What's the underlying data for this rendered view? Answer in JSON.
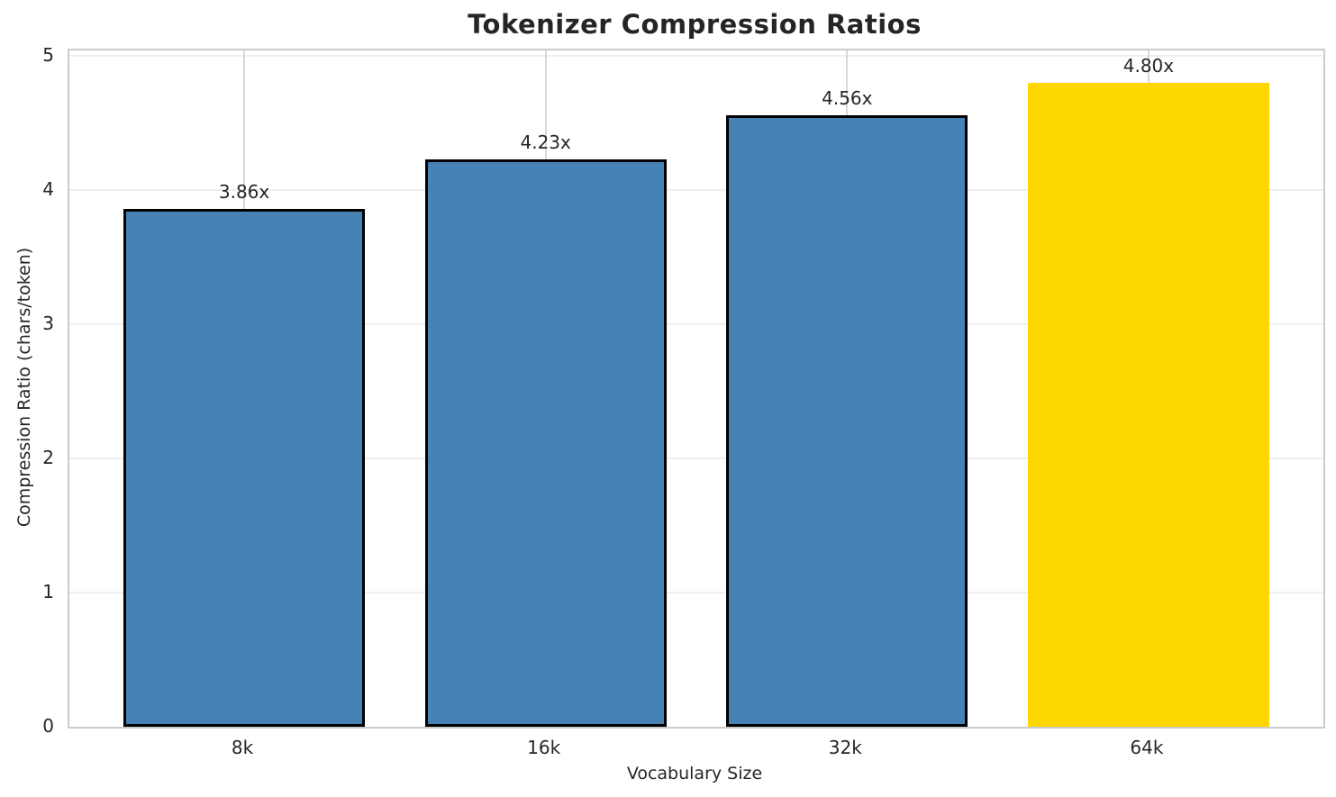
{
  "chart_data": {
    "type": "bar",
    "title": "Tokenizer Compression Ratios",
    "xlabel": "Vocabulary Size",
    "ylabel": "Compression Ratio (chars/token)",
    "categories": [
      "8k",
      "16k",
      "32k",
      "64k"
    ],
    "values": [
      3.86,
      4.23,
      4.56,
      4.8
    ],
    "value_labels": [
      "3.86x",
      "4.23x",
      "4.56x",
      "4.80x"
    ],
    "yticks": [
      0,
      1,
      2,
      3,
      4,
      5
    ],
    "ylim": [
      0,
      5.04
    ],
    "grid": true,
    "legend": "none",
    "bar_fill_colors": [
      "#4682b4",
      "#4682b4",
      "#4682b4",
      "#ffd700"
    ],
    "bar_edge_colors": [
      "#000000",
      "#000000",
      "#000000",
      "#ffd700"
    ],
    "highlight_index": 3
  },
  "colors": {
    "bar_blue": "#4682b4",
    "bar_gold": "#ffd700",
    "bar_edge": "#000000",
    "spine": "#cccccc",
    "hgrid": "#efefef",
    "vgrid": "#d9d9d9",
    "text": "#262626",
    "title": "#252525",
    "background": "#ffffff"
  }
}
